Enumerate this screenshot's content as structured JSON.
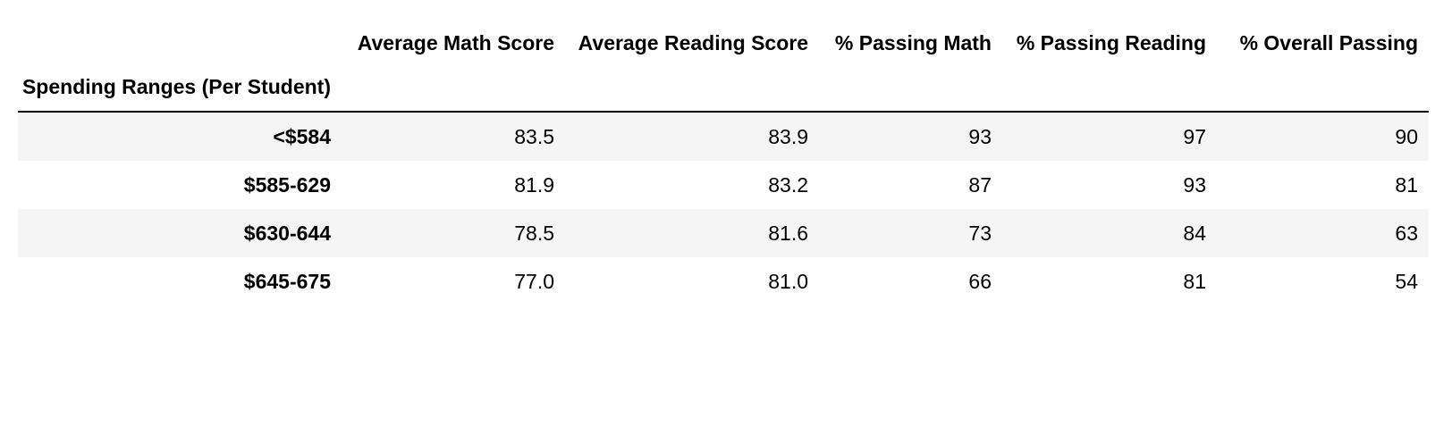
{
  "table": {
    "columns": [
      "Average Math Score",
      "Average Reading Score",
      "% Passing Math",
      "% Passing Reading",
      "% Overall Passing"
    ],
    "index_name": "Spending Ranges (Per Student)",
    "rows": [
      {
        "label": "<$584",
        "values": [
          "83.5",
          "83.9",
          "93",
          "97",
          "90"
        ]
      },
      {
        "label": "$585-629",
        "values": [
          "81.9",
          "83.2",
          "87",
          "93",
          "81"
        ]
      },
      {
        "label": "$630-644",
        "values": [
          "78.5",
          "81.6",
          "73",
          "84",
          "63"
        ]
      },
      {
        "label": "$645-675",
        "values": [
          "77.0",
          "81.0",
          "66",
          "81",
          "54"
        ]
      }
    ]
  }
}
